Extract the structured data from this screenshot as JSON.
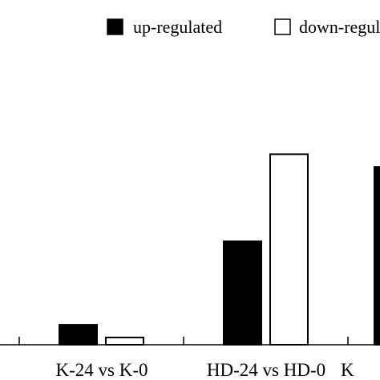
{
  "chart_data": {
    "type": "bar",
    "categories": [
      "K-24 vs K-0",
      "HD-24 vs HD-0",
      "K"
    ],
    "series": [
      {
        "name": "up-regulated",
        "values": [
          11,
          57,
          98
        ],
        "color": "#000000"
      },
      {
        "name": "down-regulated",
        "values": [
          4,
          105,
          null
        ],
        "color": "#ffffff"
      }
    ],
    "legend": {
      "placement": "top-right",
      "items": [
        {
          "label": "up-regulated",
          "swatch": "#000000"
        },
        {
          "label": "down-regulated",
          "swatch": "#ffffff"
        }
      ]
    },
    "title": "",
    "xlabel": "",
    "ylabel": "",
    "ylim": [
      0,
      190
    ],
    "grid": false
  }
}
